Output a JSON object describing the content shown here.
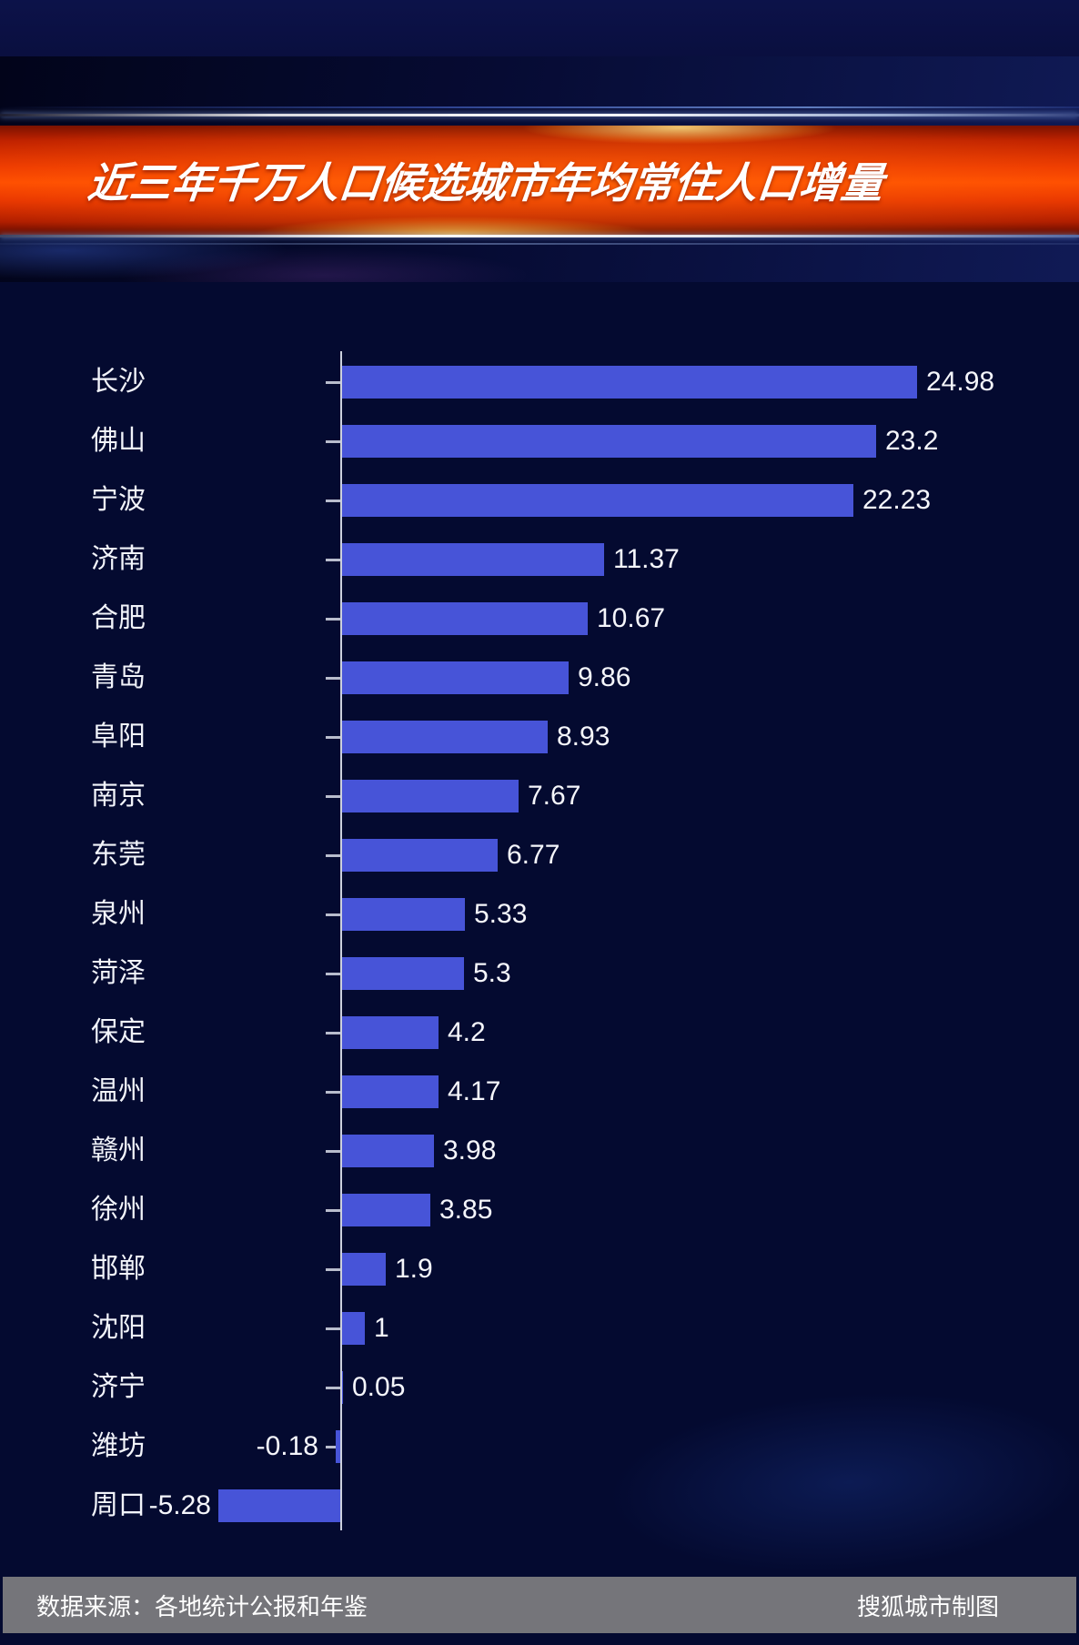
{
  "banner": {
    "title": "近三年千万人口候选城市年均常住人口增量"
  },
  "chart_data": {
    "type": "bar",
    "orientation": "horizontal",
    "title": "近三年千万人口候选城市年均常住人口增量",
    "categories": [
      "长沙",
      "佛山",
      "宁波",
      "济南",
      "合肥",
      "青岛",
      "阜阳",
      "南京",
      "东莞",
      "泉州",
      "菏泽",
      "保定",
      "温州",
      "赣州",
      "徐州",
      "邯郸",
      "沈阳",
      "济宁",
      "潍坊",
      "周口"
    ],
    "values": [
      24.98,
      23.2,
      22.23,
      11.37,
      10.67,
      9.86,
      8.93,
      7.67,
      6.77,
      5.33,
      5.3,
      4.2,
      4.17,
      3.98,
      3.85,
      1.9,
      1,
      0.05,
      -0.18,
      -5.28
    ],
    "value_labels": [
      "24.98",
      "23.2",
      "22.23",
      "11.37",
      "10.67",
      "9.86",
      "8.93",
      "7.67",
      "6.77",
      "5.33",
      "5.3",
      "4.2",
      "4.17",
      "3.98",
      "3.85",
      "1.9",
      "1",
      "0.05",
      "-0.18",
      "-5.28"
    ],
    "xlim": [
      -6,
      26
    ],
    "grid": false,
    "legend": "none",
    "bar_color": "#4754d8",
    "background_color": "#040a30",
    "axis_color": "#ccd0dd"
  },
  "footer": {
    "source_label": "数据来源：各地统计公报和年鉴",
    "credit_label": "搜狐城市制图"
  },
  "colors": {
    "bar": "#4754d8",
    "page_background": "#040a30",
    "banner_red": "#ff4c00",
    "footer_gray": "#75757a"
  }
}
